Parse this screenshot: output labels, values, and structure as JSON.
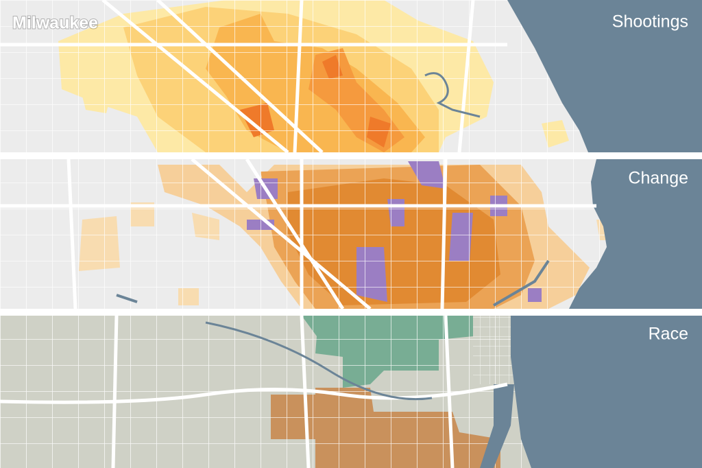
{
  "map": {
    "title": "Milwaukee",
    "panels": [
      "Shootings",
      "Change",
      "Race"
    ]
  }
}
